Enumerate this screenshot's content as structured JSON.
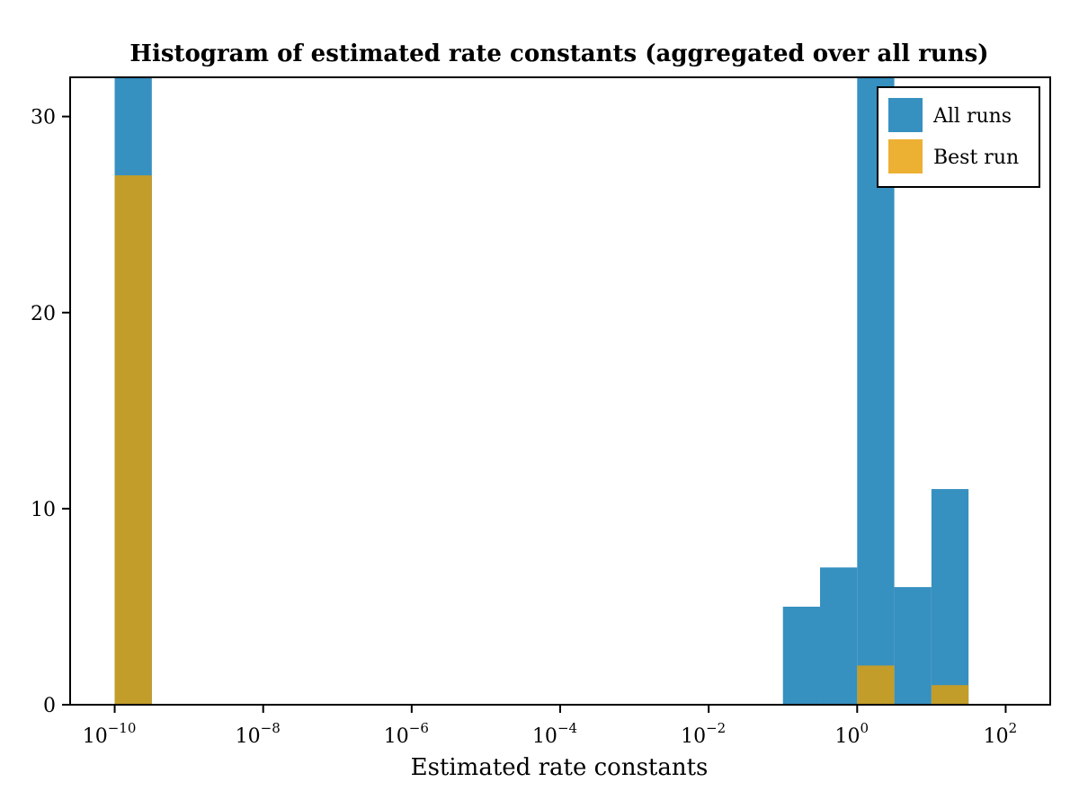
{
  "chart_data": {
    "type": "bar",
    "title": "Histogram of estimated rate constants (aggregated over all runs)",
    "xlabel": "Estimated rate constants",
    "ylabel": "",
    "x_scale": "log10",
    "xlim_log10": [
      -10.6,
      2.6
    ],
    "ylim": [
      0,
      32
    ],
    "x_ticks": [
      {
        "exp": -10,
        "base": "10",
        "sup": "−10"
      },
      {
        "exp": -8,
        "base": "10",
        "sup": "−8"
      },
      {
        "exp": -6,
        "base": "10",
        "sup": "−6"
      },
      {
        "exp": -4,
        "base": "10",
        "sup": "−4"
      },
      {
        "exp": -2,
        "base": "10",
        "sup": "−2"
      },
      {
        "exp": 0,
        "base": "10",
        "sup": "0"
      },
      {
        "exp": 2,
        "base": "10",
        "sup": "2"
      }
    ],
    "y_ticks": [
      0,
      10,
      20,
      30
    ],
    "bin_edges_log10": [
      -10,
      -9.5,
      -1,
      -0.5,
      0,
      0.5,
      1,
      1.5
    ],
    "series": [
      {
        "name": "All runs",
        "color": "#3690c0",
        "counts": [
          34,
          0,
          5,
          7,
          34,
          6,
          11
        ]
      },
      {
        "name": "Best run",
        "color": "#c29d29",
        "legend_color": "#ecb033",
        "counts": [
          27,
          0,
          0,
          0,
          2,
          0,
          1
        ]
      }
    ],
    "legend": {
      "position": "top-right",
      "entries": [
        "All runs",
        "Best run"
      ]
    }
  }
}
